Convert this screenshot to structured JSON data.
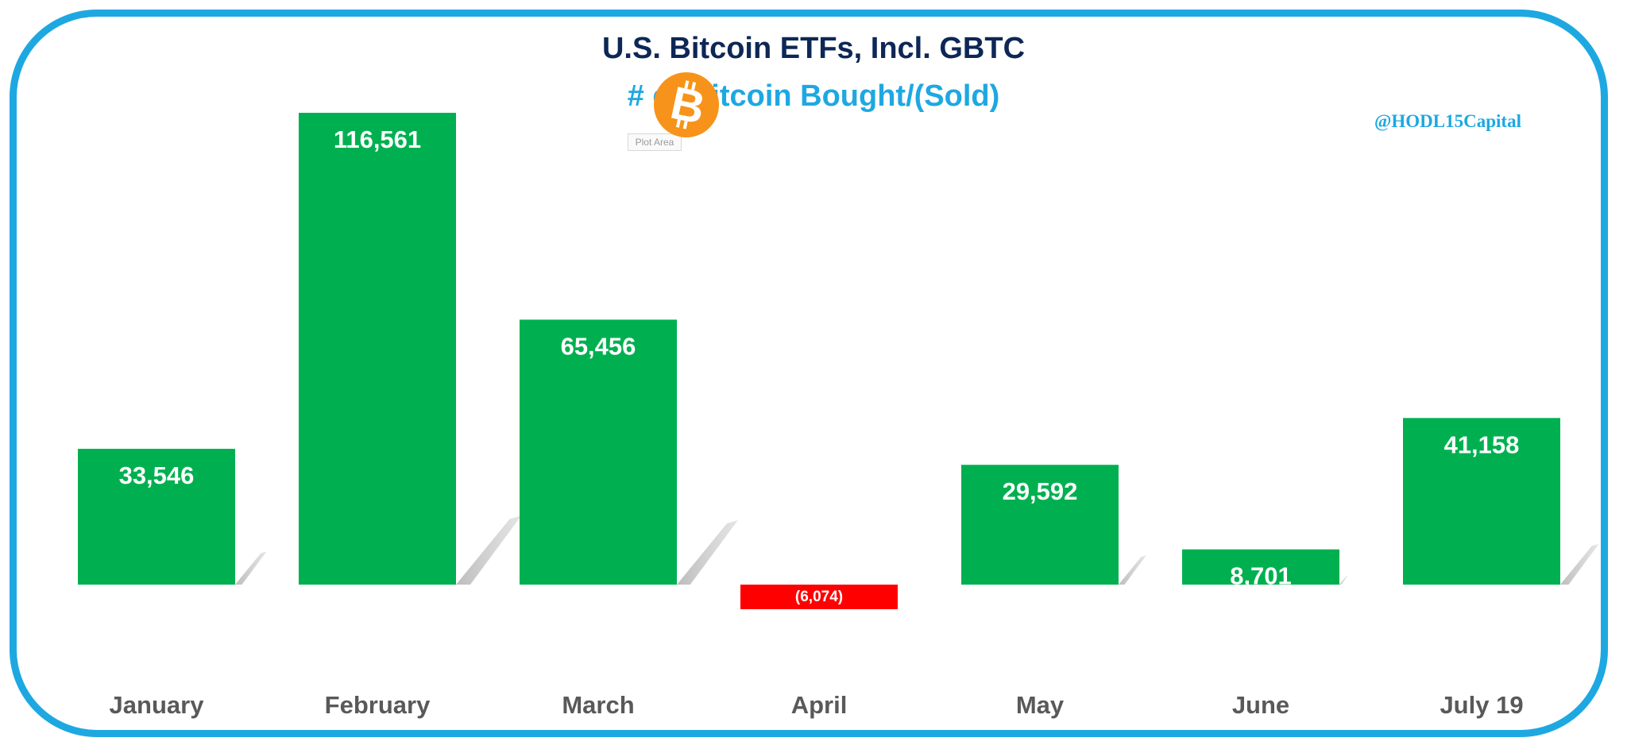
{
  "header": {
    "title": "U.S. Bitcoin ETFs, Incl. GBTC",
    "subtitle": "# of Bitcoin Bought/(Sold)",
    "handle": "@HODL15Capital",
    "plot_area_tag": "Plot Area",
    "logo_icon": "bitcoin-icon"
  },
  "colors": {
    "frame": "#1ea8e1",
    "title": "#0d2756",
    "subtitle": "#1ea8e1",
    "positive_bar": "#00b050",
    "negative_bar": "#ff0000",
    "logo": "#f7931a",
    "axis_label": "#595959"
  },
  "chart_data": {
    "type": "bar",
    "title": "U.S. Bitcoin ETFs, Incl. GBTC",
    "subtitle": "# of Bitcoin Bought/(Sold)",
    "xlabel": "",
    "ylabel": "",
    "categories": [
      "January",
      "February",
      "March",
      "April",
      "May",
      "June",
      "July 19"
    ],
    "values": [
      33546,
      116561,
      65456,
      -6074,
      29592,
      8701,
      41158
    ],
    "data_labels": [
      "33,546",
      "116,561",
      "65,456",
      "(6,074)",
      "29,592",
      "8,701",
      "41,158"
    ],
    "ylim": [
      -10000,
      120000
    ],
    "grid": false,
    "legend": "none"
  }
}
